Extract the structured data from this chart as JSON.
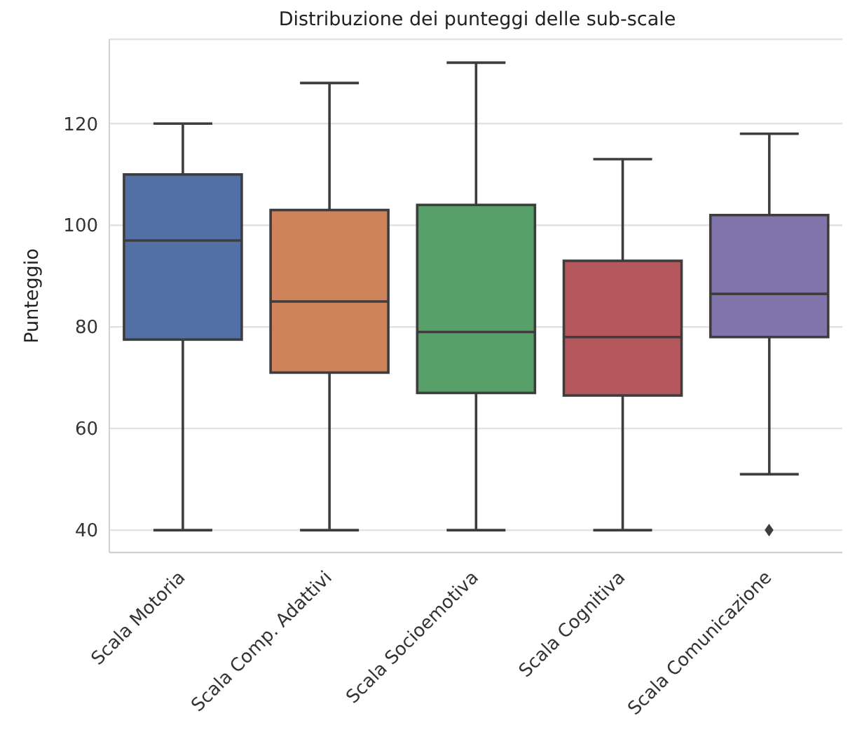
{
  "chart_data": {
    "type": "box",
    "title": "Distribuzione dei punteggi delle sub-scale",
    "ylabel": "Punteggio",
    "categories": [
      "Scala Motoria",
      "Scala Comp. Adattivi",
      "Scala Socioemotiva",
      "Scala Cognitiva",
      "Scala Comunicazione"
    ],
    "colors": [
      "#5370a6",
      "#d0825a",
      "#58a06a",
      "#b5585e",
      "#8275ad"
    ],
    "boxes": [
      {
        "low": 40,
        "q1": 77.5,
        "median": 97,
        "q3": 110,
        "high": 120
      },
      {
        "low": 40,
        "q1": 71,
        "median": 85,
        "q3": 103,
        "high": 128
      },
      {
        "low": 40,
        "q1": 67,
        "median": 79,
        "q3": 104,
        "high": 132
      },
      {
        "low": 40,
        "q1": 66.5,
        "median": 78,
        "q3": 93,
        "high": 113
      },
      {
        "low": 51,
        "q1": 78,
        "median": 86.5,
        "q3": 102,
        "high": 118,
        "outliers": [
          40
        ]
      }
    ],
    "ylim": [
      35.6,
      136.6
    ],
    "yticks": [
      40,
      60,
      80,
      100,
      120
    ],
    "grid": "y",
    "legend": false
  }
}
